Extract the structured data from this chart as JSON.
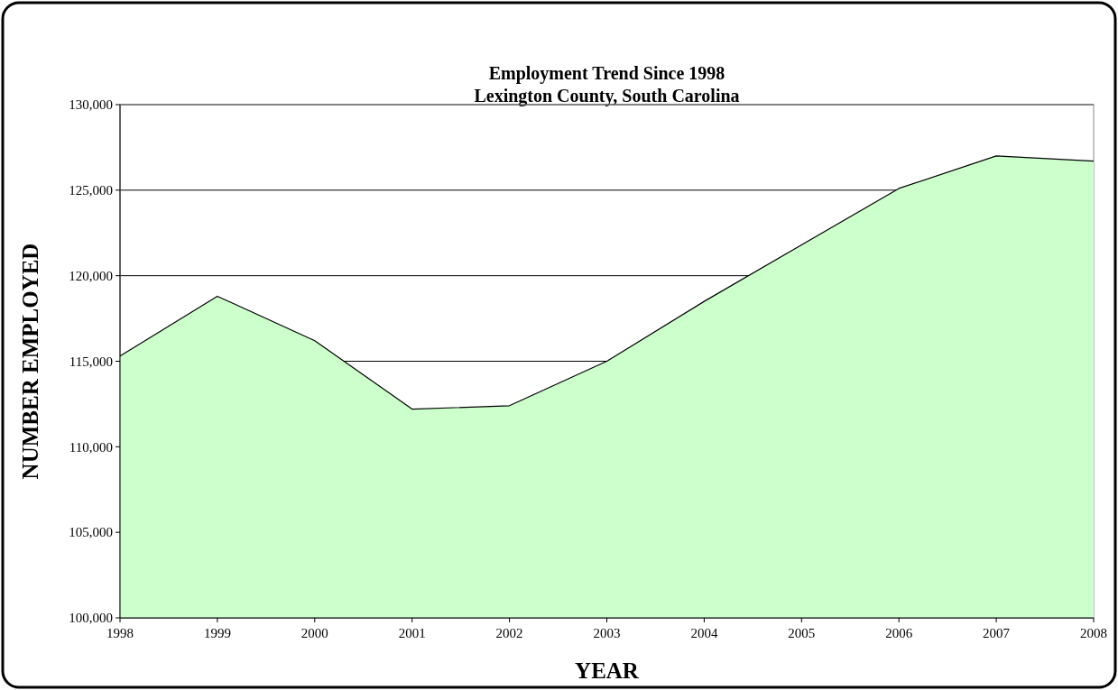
{
  "chart_data": {
    "type": "area",
    "title": "Employment Trend Since 1998",
    "subtitle": "Lexington County, South Carolina",
    "xlabel": "YEAR",
    "ylabel": "NUMBER EMPLOYED",
    "categories": [
      "1998",
      "1999",
      "2000",
      "2001",
      "2002",
      "2003",
      "2004",
      "2005",
      "2006",
      "2007",
      "2008"
    ],
    "series": [
      {
        "color": "#ccffcc",
        "values": [
          115300,
          118800,
          116200,
          112200,
          112400,
          115000,
          118500,
          121800,
          125100,
          127000,
          126700
        ]
      }
    ],
    "ylim": [
      100000,
      130000
    ],
    "yticks": [
      {
        "value": 100000,
        "label": "100,000"
      },
      {
        "value": 105000,
        "label": "105,000"
      },
      {
        "value": 110000,
        "label": "110,000"
      },
      {
        "value": 115000,
        "label": "115,000"
      },
      {
        "value": 120000,
        "label": "120,000"
      },
      {
        "value": 125000,
        "label": "125,000"
      },
      {
        "value": 130000,
        "label": "130,000"
      }
    ],
    "grid": "y"
  }
}
